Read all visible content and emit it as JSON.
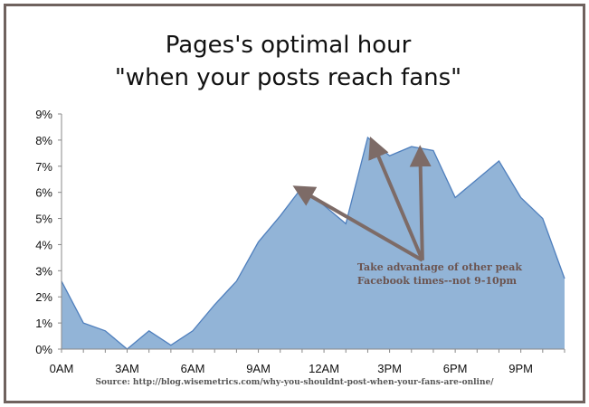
{
  "chart_data": {
    "type": "area",
    "title": [
      "Pages's optimal hour",
      "\"when your posts reach fans\""
    ],
    "xlabel": "",
    "ylabel": "",
    "x": [
      0,
      1,
      2,
      3,
      4,
      5,
      6,
      7,
      8,
      9,
      10,
      11,
      12,
      13,
      14,
      15,
      16,
      17,
      18,
      19,
      20,
      21,
      22,
      23
    ],
    "values": [
      2.6,
      1.0,
      0.7,
      0.0,
      0.7,
      0.15,
      0.7,
      1.7,
      2.6,
      4.1,
      5.1,
      6.2,
      5.5,
      4.8,
      8.1,
      7.4,
      7.75,
      7.6,
      5.8,
      6.5,
      7.2,
      5.8,
      5.0,
      2.7
    ],
    "xticks": [
      "0AM",
      "3AM",
      "6AM",
      "9AM",
      "12AM",
      "3PM",
      "6PM",
      "9PM"
    ],
    "xtick_positions": [
      0,
      3,
      6,
      9,
      12,
      15,
      18,
      21
    ],
    "yticks": [
      "0%",
      "1%",
      "2%",
      "3%",
      "4%",
      "5%",
      "6%",
      "7%",
      "8%",
      "9%"
    ],
    "ylim": [
      0,
      9
    ],
    "xlim": [
      0,
      23
    ],
    "grid": false,
    "colors": {
      "fill": "#92b4d7",
      "stroke": "#4f7fbd",
      "arrow": "#7d6b67",
      "annotation_text": "#6b5450"
    },
    "annotation": {
      "text_lines": [
        "Take advantage of other peak",
        "Facebook times--not 9-10pm"
      ],
      "origin": [
        16.5,
        3.4
      ],
      "targets": [
        [
          11,
          6.05
        ],
        [
          14.3,
          7.75
        ],
        [
          16.4,
          7.4
        ]
      ]
    }
  },
  "source": "Source: http://blog.wisemetrics.com/why-you-shouldnt-post-when-your-fans-are-online/"
}
